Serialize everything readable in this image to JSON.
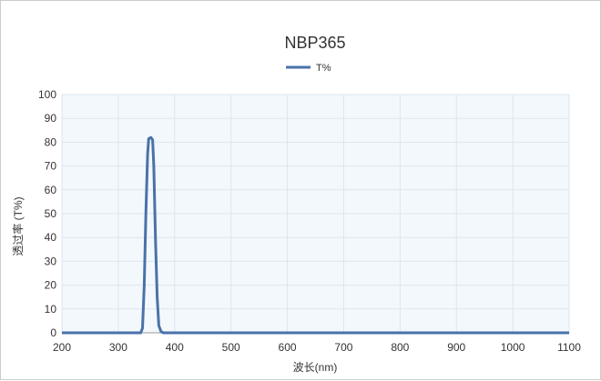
{
  "chart_data": {
    "type": "line",
    "title": "NBP365",
    "xlabel": "波长(nm)",
    "ylabel": "透过率 (T%)",
    "xlim": [
      200,
      1100
    ],
    "ylim": [
      0,
      100
    ],
    "xticks": [
      200,
      300,
      400,
      500,
      600,
      700,
      800,
      900,
      1000,
      1100
    ],
    "yticks": [
      0,
      10,
      20,
      30,
      40,
      50,
      60,
      70,
      80,
      90,
      100
    ],
    "grid": true,
    "legend": "top-center",
    "series": [
      {
        "name": "T%",
        "color": "#4a72a8",
        "x": [
          200,
          340,
          343,
          346,
          349,
          352,
          354,
          358,
          361,
          363,
          366,
          369,
          372,
          376,
          380,
          1100
        ],
        "y": [
          0,
          0,
          2,
          20,
          50,
          75,
          81.5,
          82,
          81,
          70,
          40,
          15,
          3,
          0.5,
          0,
          0
        ]
      }
    ]
  },
  "colors": {
    "plot_bg": "#f3f8fc",
    "grid": "#dde6ee",
    "line": "#4a72a8"
  }
}
